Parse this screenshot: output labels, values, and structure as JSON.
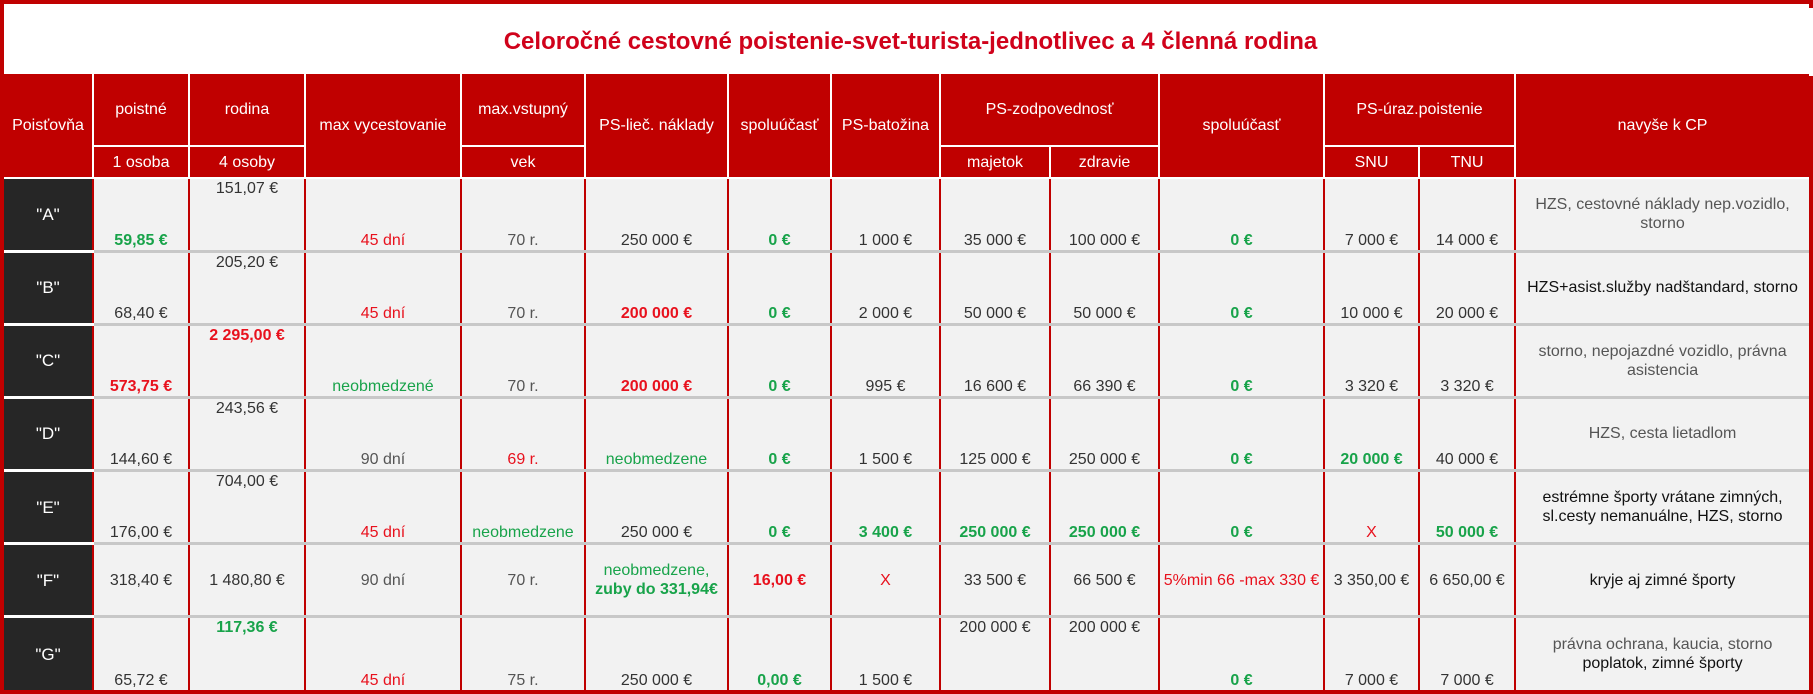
{
  "title": "Celoročné cestovné poistenie-svet-turista-jednotlivec a 4 členná rodina",
  "colors": {
    "header_red": "#c00000",
    "title_red": "#d0021b",
    "green": "#18a34a",
    "red": "#e8111d",
    "dark_cell": "#262626"
  },
  "headers": {
    "insurer": "Poisťovňa",
    "premium": "poistné",
    "premium_sub": "1 osoba",
    "family": "rodina",
    "family_sub": "4 osoby",
    "max_travel": "max vycestovanie",
    "max_age": "max.vstupný",
    "max_age_sub": "vek",
    "medical": "PS-lieč. náklady",
    "deductible": "spoluúčasť",
    "baggage": "PS-batožina",
    "liability": "PS-zodpovednosť",
    "liability_property": "majetok",
    "liability_health": "zdravie",
    "deductible2": "spoluúčasť",
    "accident": "PS-úraz.poistenie",
    "accident_snu": "SNU",
    "accident_tnu": "TNU",
    "extras": "navyše k CP"
  },
  "rows": [
    {
      "insurer": "\"A\"",
      "premium": "59,85 €",
      "family": "151,07 €",
      "max_travel": "45 dní",
      "max_age": "70 r.",
      "medical": "250 000 €",
      "deductible": "0 €",
      "baggage": "1 000 €",
      "liab_property": "35 000 €",
      "liab_health": "100 000 €",
      "deductible2": "0 €",
      "snu": "7 000 €",
      "tnu": "14 000 €",
      "extras": "HZS, cestovné náklady nep.vozidlo, storno"
    },
    {
      "insurer": "\"B\"",
      "premium": "68,40 €",
      "family": "205,20 €",
      "max_travel": "45 dní",
      "max_age": "70 r.",
      "medical": "200 000 €",
      "deductible": "0 €",
      "baggage": "2 000 €",
      "liab_property": "50 000 €",
      "liab_health": "50 000 €",
      "deductible2": "0 €",
      "snu": "10 000 €",
      "tnu": "20 000 €",
      "extras": "HZS+asist.služby nadštandard, storno"
    },
    {
      "insurer": "\"C\"",
      "premium": "573,75 €",
      "family": "2 295,00 €",
      "max_travel": "neobmedzené",
      "max_age": "70 r.",
      "medical": "200 000 €",
      "deductible": "0 €",
      "baggage": "995 €",
      "liab_property": "16 600 €",
      "liab_health": "66 390 €",
      "deductible2": "0 €",
      "snu": "3 320 €",
      "tnu": "3 320 €",
      "extras": "storno, nepojazdné vozidlo, právna asistencia"
    },
    {
      "insurer": "\"D\"",
      "premium": "144,60 €",
      "family": "243,56 €",
      "max_travel": "90 dní",
      "max_age": "69 r.",
      "medical": "neobmedzene",
      "deductible": "0 €",
      "baggage": "1 500 €",
      "liab_property": "125 000 €",
      "liab_health": "250 000 €",
      "deductible2": "0 €",
      "snu": "20 000 €",
      "tnu": "40 000 €",
      "extras": "HZS, cesta lietadlom"
    },
    {
      "insurer": "\"E\"",
      "premium": "176,00 €",
      "family": "704,00 €",
      "max_travel": "45 dní",
      "max_age": "neobmedzene",
      "medical": "250 000 €",
      "deductible": "0 €",
      "baggage": "3 400 €",
      "liab_property": "250 000 €",
      "liab_health": "250 000 €",
      "deductible2": "0 €",
      "snu": "X",
      "tnu": "50 000 €",
      "extras": "estrémne športy vrátane zimných, sl.cesty nemanuálne, HZS, storno"
    },
    {
      "insurer": "\"F\"",
      "premium": "318,40 €",
      "family": "1 480,80 €",
      "max_travel": "90 dní",
      "max_age": "70 r.",
      "medical": "neobmedzene,",
      "medical2": "zuby do 331,94€",
      "deductible": "16,00 €",
      "baggage": "X",
      "liab_property": "33 500 €",
      "liab_health": "66 500 €",
      "deductible2": "5%min 66 -max 330 €",
      "snu": "3 350,00 €",
      "tnu": "6 650,00 €",
      "extras": "kryje aj zimné športy"
    },
    {
      "insurer": "\"G\"",
      "premium": "65,72 €",
      "family": "117,36 €",
      "max_travel": "45 dní",
      "max_age": "75 r.",
      "medical": "250 000 €",
      "deductible": "0,00 €",
      "baggage": "1 500 €",
      "liab_property": "200 000 €",
      "liab_health": "200 000 €",
      "deductible2": "0 €",
      "snu": "7 000 €",
      "tnu": "7 000 €",
      "extras": "právna ochrana, kaucia, storno",
      "extras2": "poplatok, zimné športy"
    }
  ]
}
